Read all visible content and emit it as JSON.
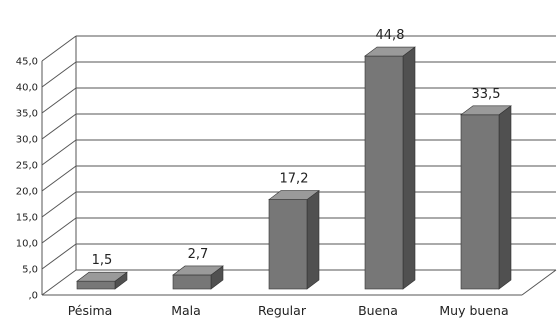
{
  "chart_data": {
    "type": "bar",
    "categories": [
      "Pésima",
      "Mala",
      "Regular",
      "Buena",
      "Muy buena"
    ],
    "values": [
      1.5,
      2.7,
      17.2,
      44.8,
      33.5
    ],
    "value_labels": [
      "1,5",
      "2,7",
      "17,2",
      "44,8",
      "33,5"
    ],
    "ylim": [
      0,
      45
    ],
    "yticks": [
      ",0",
      "5,0",
      "10,0",
      "15,0",
      "20,0",
      "25,0",
      "30,0",
      "35,0",
      "40,0",
      "45,0"
    ],
    "grid": true,
    "style": "3d-column",
    "bar_color": "#777777",
    "bar_side_color": "#505050",
    "bar_top_color": "#9a9a9a",
    "grid_color": "#555555"
  }
}
